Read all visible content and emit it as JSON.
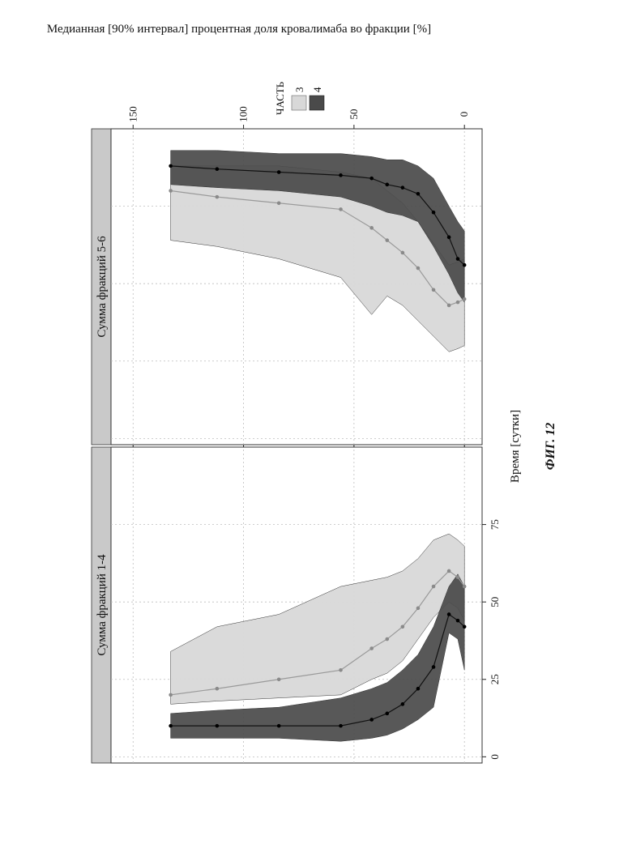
{
  "figure": {
    "caption": "ФИГ. 12",
    "xlabel": "Время [сутки]",
    "ylabel": "Медианная [90% интервал] процентная доля кровалимаба во фракции [%]",
    "legend": {
      "title": "ЧАСТЬ",
      "items": [
        {
          "label": "3",
          "color": "#d8d8d8"
        },
        {
          "label": "4",
          "color": "#4a4a4a"
        }
      ]
    },
    "x_ticks": [
      "0",
      "50",
      "100",
      "150"
    ],
    "y_ticks": [
      "0",
      "25",
      "50",
      "75"
    ]
  },
  "chart_data": [
    {
      "type": "line",
      "title": "Сумма фракций 1-4",
      "xlabel": "Время [сутки]",
      "xlim": [
        -8,
        160
      ],
      "ylim": [
        -2,
        100
      ],
      "series": [
        {
          "name": "3",
          "x": [
            0,
            3,
            7,
            14,
            21,
            28,
            35,
            42,
            56,
            84,
            112,
            133
          ],
          "median": [
            55,
            58,
            60,
            55,
            48,
            42,
            38,
            35,
            28,
            25,
            22,
            20
          ],
          "lower": [
            44,
            48,
            50,
            45,
            38,
            31,
            27,
            25,
            20,
            19,
            18,
            17
          ],
          "upper": [
            68,
            70,
            72,
            70,
            64,
            60,
            58,
            57,
            55,
            46,
            42,
            34
          ]
        },
        {
          "name": "4",
          "x": [
            0,
            3,
            7,
            14,
            21,
            28,
            35,
            42,
            56,
            84,
            112,
            133
          ],
          "median": [
            42,
            44,
            46,
            29,
            22,
            17,
            14,
            12,
            10,
            10,
            10,
            10
          ],
          "lower": [
            28,
            38,
            40,
            16,
            12,
            9,
            7,
            6,
            5,
            6,
            6,
            6
          ],
          "upper": [
            55,
            59,
            55,
            42,
            33,
            28,
            24,
            22,
            19,
            16,
            15,
            14
          ]
        }
      ]
    },
    {
      "type": "line",
      "title": "Сумма фракций 5-6",
      "xlabel": "Время [сутки]",
      "xlim": [
        -8,
        160
      ],
      "ylim": [
        -2,
        100
      ],
      "series": [
        {
          "name": "3",
          "x": [
            0,
            3,
            7,
            14,
            21,
            28,
            35,
            42,
            56,
            84,
            112,
            133
          ],
          "median": [
            45,
            44,
            43,
            48,
            55,
            60,
            64,
            68,
            74,
            76,
            78,
            80
          ],
          "lower": [
            30,
            29,
            28,
            33,
            38,
            43,
            46,
            40,
            52,
            58,
            62,
            64
          ],
          "upper": [
            58,
            57,
            56,
            63,
            70,
            76,
            80,
            84,
            86,
            88,
            88,
            88
          ]
        },
        {
          "name": "4",
          "x": [
            0,
            3,
            7,
            14,
            21,
            28,
            35,
            42,
            56,
            84,
            112,
            133
          ],
          "median": [
            56,
            58,
            65,
            73,
            79,
            81,
            82,
            84,
            85,
            86,
            87,
            88
          ],
          "lower": [
            44,
            47,
            53,
            62,
            70,
            72,
            73,
            75,
            78,
            80,
            81,
            82
          ],
          "upper": [
            67,
            70,
            75,
            84,
            88,
            90,
            90,
            91,
            92,
            92,
            93,
            93
          ]
        }
      ]
    }
  ]
}
